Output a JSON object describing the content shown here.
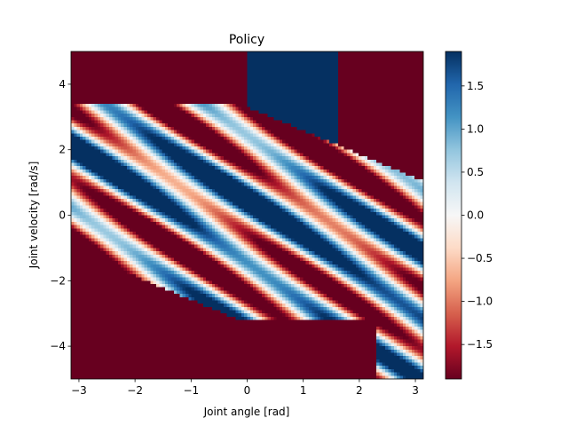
{
  "chart_data": {
    "type": "heatmap",
    "title": "Policy",
    "xlabel": "Joint angle [rad]",
    "ylabel": "Joint velocity [rad/s]",
    "xlim": [
      -3.1416,
      3.1416
    ],
    "ylim": [
      -5.0,
      5.0
    ],
    "x_ticks": [
      -3,
      -2,
      -1,
      0,
      1,
      2,
      3
    ],
    "x_tick_labels": [
      "−3",
      "−2",
      "−1",
      "0",
      "1",
      "2",
      "3"
    ],
    "y_ticks": [
      -4,
      -2,
      0,
      2,
      4
    ],
    "y_tick_labels": [
      "−4",
      "−2",
      "0",
      "2",
      "4"
    ],
    "colormap": "RdBu",
    "colormap_colors": [
      "#67001f",
      "#b2182b",
      "#d6604d",
      "#f4a582",
      "#fddbc7",
      "#f7f7f7",
      "#d1e5f0",
      "#92c5de",
      "#4393c3",
      "#2166ac",
      "#053061"
    ],
    "clim": [
      -1.9,
      1.9
    ],
    "colorbar_ticks": [
      -1.5,
      -1.0,
      -0.5,
      0.0,
      0.5,
      1.0,
      1.5
    ],
    "colorbar_tick_labels": [
      "−1.5",
      "−1.0",
      "−0.5",
      "0.0",
      "0.5",
      "1.0",
      "1.5"
    ],
    "grid": false,
    "legend": "none"
  }
}
